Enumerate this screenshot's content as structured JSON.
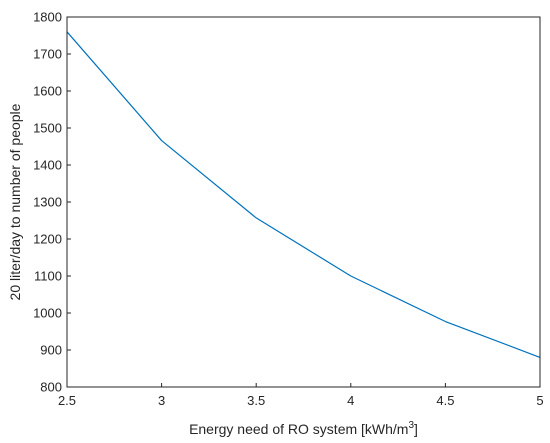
{
  "chart_data": {
    "type": "line",
    "title": "",
    "xlabel": "Energy need of RO system [kWh/m",
    "xlabel_superscript": "3",
    "xlabel_suffix": "]",
    "ylabel": "20 liter/day to number of people",
    "xlim": [
      2.5,
      5
    ],
    "ylim": [
      800,
      1800
    ],
    "xticks": [
      "2.5",
      "3",
      "3.5",
      "4",
      "4.5",
      "5"
    ],
    "yticks": [
      "800",
      "900",
      "1000",
      "1100",
      "1200",
      "1300",
      "1400",
      "1500",
      "1600",
      "1700",
      "1800"
    ],
    "grid": false,
    "series": [
      {
        "color": "#0072BD",
        "x": [
          2.5,
          3,
          3.5,
          4,
          4.5,
          5
        ],
        "y": [
          1760,
          1466,
          1257,
          1100,
          977,
          880
        ]
      }
    ]
  }
}
